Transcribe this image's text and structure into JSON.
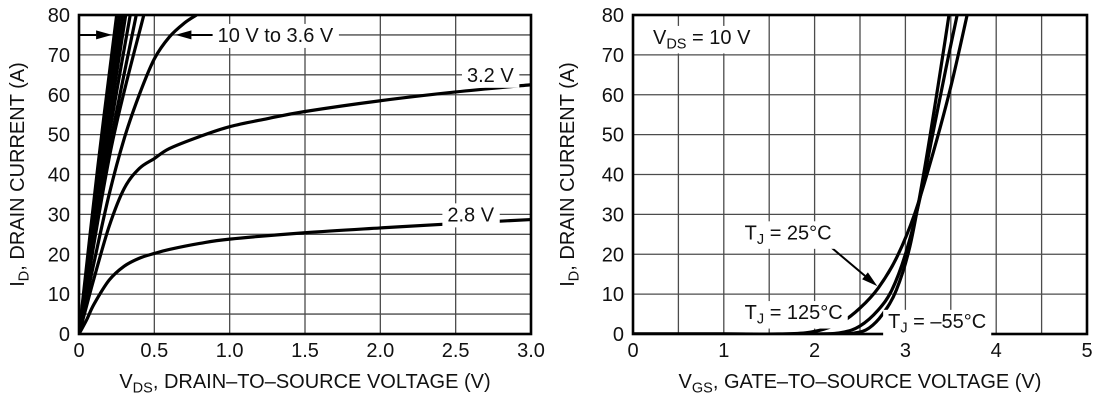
{
  "page": {
    "background": "#ffffff",
    "ink": "#000000",
    "grid_color": "#4c4c4c",
    "curve_color": "#000000"
  },
  "chart_data": [
    {
      "name": "output-characteristics",
      "type": "line",
      "title": "",
      "xlabel_parts": [
        [
          "V",
          false
        ],
        [
          "DS",
          true
        ],
        [
          ", DRAIN–TO–SOURCE VOLTAGE (V)",
          false
        ]
      ],
      "ylabel_parts": [
        [
          "I",
          false
        ],
        [
          "D",
          true
        ],
        [
          ", DRAIN CURRENT (A)",
          false
        ]
      ],
      "xlim": [
        0,
        3
      ],
      "ylim": [
        0,
        80
      ],
      "x_grid_step": 0.5,
      "y_grid_step": 5,
      "grid": true,
      "legend_position": "none",
      "x_ticks": [
        [
          0,
          "0"
        ],
        [
          0.5,
          "0.5"
        ],
        [
          1,
          "1.0"
        ],
        [
          1.5,
          "1.5"
        ],
        [
          2,
          "2.0"
        ],
        [
          2.5,
          "2.5"
        ],
        [
          3,
          "3.0"
        ]
      ],
      "y_ticks": [
        [
          0,
          "0"
        ],
        [
          10,
          "10"
        ],
        [
          20,
          "20"
        ],
        [
          30,
          "30"
        ],
        [
          40,
          "40"
        ],
        [
          50,
          "50"
        ],
        [
          60,
          "60"
        ],
        [
          70,
          "70"
        ],
        [
          80,
          "80"
        ]
      ],
      "frame": {
        "l": 79,
        "r": 531,
        "t": 15,
        "b": 334
      },
      "series": [
        {
          "name": "vgs-steep-line-1",
          "points": [
            [
              0,
              0
            ],
            [
              0.125,
              42
            ],
            [
              0.25,
              80
            ]
          ]
        },
        {
          "name": "vgs-steep-line-2",
          "points": [
            [
              0,
              0
            ],
            [
              0.135,
              42
            ],
            [
              0.27,
              80
            ]
          ]
        },
        {
          "name": "vgs-steep-line-3",
          "points": [
            [
              0,
              0
            ],
            [
              0.145,
              42
            ],
            [
              0.29,
              80
            ]
          ]
        },
        {
          "name": "vgs-steep-line-4",
          "points": [
            [
              0,
              0
            ],
            [
              0.155,
              42
            ],
            [
              0.31,
              80
            ]
          ]
        },
        {
          "name": "vgs-steep-line-5",
          "points": [
            [
              0,
              0
            ],
            [
              0.17,
              43
            ],
            [
              0.34,
              80
            ]
          ]
        },
        {
          "name": "vgs-steep-line-6",
          "points": [
            [
              0,
              0
            ],
            [
              0.19,
              44
            ],
            [
              0.38,
              80
            ]
          ]
        },
        {
          "name": "vgs-4v-line",
          "points": [
            [
              0,
              0
            ],
            [
              0.21,
              46
            ],
            [
              0.43,
              80
            ]
          ]
        },
        {
          "name": "vgs-3p6v-curve",
          "points": [
            [
              0,
              0
            ],
            [
              0.1,
              18
            ],
            [
              0.2,
              35
            ],
            [
              0.3,
              49
            ],
            [
              0.4,
              60
            ],
            [
              0.5,
              69
            ],
            [
              0.6,
              74.5
            ],
            [
              0.7,
              78
            ],
            [
              0.78,
              80
            ]
          ]
        },
        {
          "name": "vgs-3p2v-curve",
          "points": [
            [
              0,
              0
            ],
            [
              0.05,
              7
            ],
            [
              0.1,
              14
            ],
            [
              0.2,
              27
            ],
            [
              0.3,
              36.5
            ],
            [
              0.4,
              41.5
            ],
            [
              0.5,
              44
            ],
            [
              0.6,
              46.5
            ],
            [
              0.8,
              49.5
            ],
            [
              1.0,
              52
            ],
            [
              1.25,
              54
            ],
            [
              1.5,
              55.8
            ],
            [
              2.0,
              58.5
            ],
            [
              2.5,
              60.7
            ],
            [
              3.0,
              62.5
            ]
          ]
        },
        {
          "name": "vgs-2p8v-curve",
          "points": [
            [
              0,
              0
            ],
            [
              0.05,
              3.5
            ],
            [
              0.1,
              7.5
            ],
            [
              0.2,
              13.5
            ],
            [
              0.3,
              17
            ],
            [
              0.4,
              19
            ],
            [
              0.5,
              20.2
            ],
            [
              0.6,
              21.2
            ],
            [
              0.8,
              22.7
            ],
            [
              1.0,
              23.8
            ],
            [
              1.5,
              25.4
            ],
            [
              2.0,
              26.6
            ],
            [
              2.5,
              27.7
            ],
            [
              3.0,
              28.7
            ]
          ]
        }
      ],
      "labels": [
        {
          "name": "vgs-range-label",
          "parts": [
            [
              "10 V to 3.6 V",
              false
            ]
          ],
          "x": 0.92,
          "y": 75,
          "anchor": "start"
        },
        {
          "name": "vgs-3p2v-label",
          "parts": [
            [
              "3.2 V",
              false
            ]
          ],
          "x": 2.73,
          "y": 65,
          "anchor": "middle"
        },
        {
          "name": "vgs-2p8v-label",
          "parts": [
            [
              "2.8 V",
              false
            ]
          ],
          "x": 2.6,
          "y": 30,
          "anchor": "middle"
        }
      ],
      "arrows": [
        {
          "name": "arrow-to-bundle-right",
          "from": [
            0.0,
            75
          ],
          "to": [
            0.22,
            75
          ]
        },
        {
          "name": "arrow-to-bundle-left",
          "from": [
            0.9,
            75
          ],
          "to": [
            0.64,
            75
          ]
        }
      ]
    },
    {
      "name": "transfer-characteristics",
      "type": "line",
      "title": "",
      "xlabel_parts": [
        [
          "V",
          false
        ],
        [
          "GS",
          true
        ],
        [
          ", GATE–TO–SOURCE VOLTAGE (V)",
          false
        ]
      ],
      "ylabel_parts": [
        [
          "I",
          false
        ],
        [
          "D",
          true
        ],
        [
          ", DRAIN CURRENT (A)",
          false
        ]
      ],
      "xlim": [
        0,
        5
      ],
      "ylim": [
        0,
        80
      ],
      "x_grid_step": 0.5,
      "y_grid_step": 10,
      "grid": true,
      "legend_position": "none",
      "x_ticks": [
        [
          0,
          "0"
        ],
        [
          1,
          "1"
        ],
        [
          2,
          "2"
        ],
        [
          3,
          "3"
        ],
        [
          4,
          "4"
        ],
        [
          5,
          "5"
        ]
      ],
      "y_ticks": [
        [
          0,
          "0"
        ],
        [
          10,
          "10"
        ],
        [
          20,
          "20"
        ],
        [
          30,
          "30"
        ],
        [
          40,
          "40"
        ],
        [
          50,
          "50"
        ],
        [
          60,
          "60"
        ],
        [
          70,
          "70"
        ],
        [
          80,
          "80"
        ]
      ],
      "frame": {
        "l": 83,
        "r": 537,
        "t": 15,
        "b": 334
      },
      "series": [
        {
          "name": "tj-125c-curve",
          "points": [
            [
              0,
              0
            ],
            [
              1.0,
              0
            ],
            [
              1.6,
              0
            ],
            [
              1.9,
              0.3
            ],
            [
              2.1,
              1.2
            ],
            [
              2.3,
              3
            ],
            [
              2.5,
              6.5
            ],
            [
              2.7,
              11.5
            ],
            [
              2.9,
              19
            ],
            [
              3.1,
              30
            ],
            [
              3.3,
              45
            ],
            [
              3.5,
              62
            ],
            [
              3.68,
              80
            ]
          ]
        },
        {
          "name": "tj-25c-curve",
          "points": [
            [
              0,
              0
            ],
            [
              1.0,
              0
            ],
            [
              2.0,
              0
            ],
            [
              2.3,
              0.4
            ],
            [
              2.5,
              2
            ],
            [
              2.7,
              6
            ],
            [
              2.85,
              11
            ],
            [
              3.0,
              20
            ],
            [
              3.15,
              33
            ],
            [
              3.3,
              50
            ],
            [
              3.45,
              67
            ],
            [
              3.57,
              80
            ]
          ]
        },
        {
          "name": "tj-m55c-curve",
          "points": [
            [
              0,
              0
            ],
            [
              1.0,
              0
            ],
            [
              2.2,
              0
            ],
            [
              2.45,
              0.3
            ],
            [
              2.6,
              1.5
            ],
            [
              2.75,
              5
            ],
            [
              2.9,
              11
            ],
            [
              3.05,
              22
            ],
            [
              3.2,
              40
            ],
            [
              3.33,
              58
            ],
            [
              3.44,
              74
            ],
            [
              3.48,
              80
            ]
          ]
        }
      ],
      "labels": [
        {
          "name": "vds-condition-label",
          "parts": [
            [
              "V",
              false
            ],
            [
              "DS",
              true
            ],
            [
              " = 10 V",
              false
            ]
          ],
          "x": 0.22,
          "y": 74.5,
          "anchor": "start"
        },
        {
          "name": "tj-25c-label",
          "parts": [
            [
              "T",
              false
            ],
            [
              "J",
              true
            ],
            [
              " = 25°C",
              false
            ]
          ],
          "x": 1.23,
          "y": 25.5,
          "anchor": "start"
        },
        {
          "name": "tj-125c-label",
          "parts": [
            [
              "T",
              false
            ],
            [
              "J",
              true
            ],
            [
              " = 125°C",
              false
            ]
          ],
          "x": 1.23,
          "y": 5.5,
          "anchor": "start"
        },
        {
          "name": "tj-m55c-label",
          "parts": [
            [
              "T",
              false
            ],
            [
              "J",
              true
            ],
            [
              " = –55°C",
              false
            ]
          ],
          "x": 2.81,
          "y": 3.3,
          "anchor": "start"
        }
      ],
      "arrows": [
        {
          "name": "arrow-to-25c-curve",
          "from": [
            2.09,
            23.5
          ],
          "to": [
            2.69,
            12
          ]
        }
      ]
    }
  ]
}
